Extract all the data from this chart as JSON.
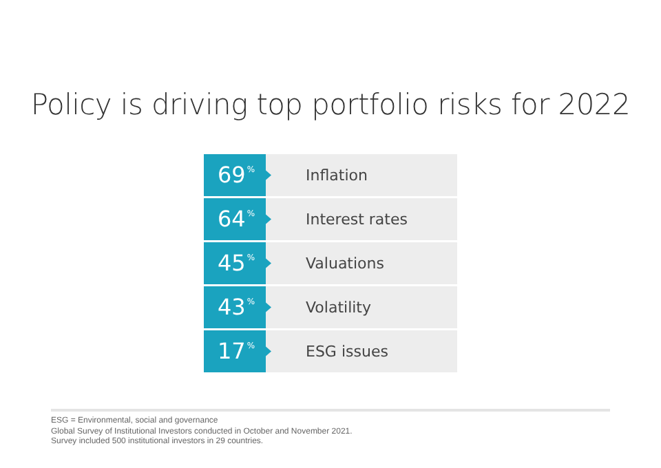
{
  "chart_data": {
    "type": "other",
    "title": "Policy is driving top portfolio risks for 2022",
    "categories": [
      "Inflation",
      "Interest rates",
      "Valuations",
      "Volatility",
      "ESG issues"
    ],
    "values": [
      69,
      64,
      45,
      43,
      17
    ],
    "value_labels": [
      "69%",
      "64%",
      "45%",
      "43%",
      "17%"
    ],
    "color": "#1aa3bf",
    "annotations": [
      "ESG = Environmental, social and governance",
      "Global Survey of Institutional Investors conducted in October and November 2021.",
      "Survey included 500 institutional investors in 29 countries."
    ]
  }
}
